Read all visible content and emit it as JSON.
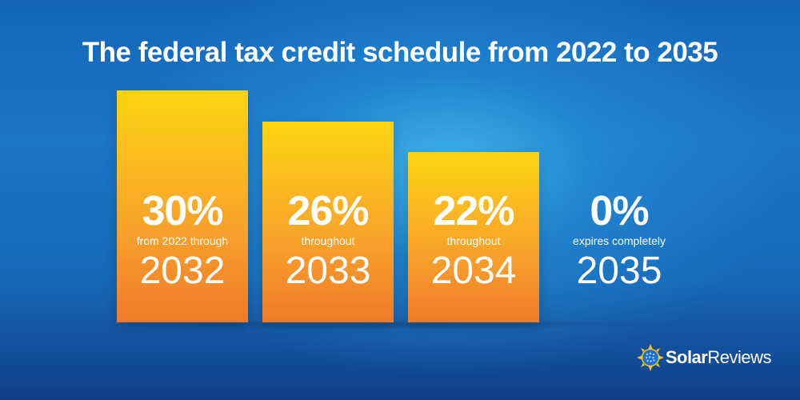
{
  "header": {
    "title": "The federal tax credit schedule from 2022 to 2035"
  },
  "chart_data": {
    "type": "bar",
    "title": "The federal tax credit schedule from 2022 to 2035",
    "categories": [
      "2032",
      "2033",
      "2034",
      "2035"
    ],
    "values": [
      30,
      26,
      22,
      0
    ],
    "value_labels": [
      "30%",
      "26%",
      "22%",
      "0%"
    ],
    "sublabels": [
      "from 2022 through",
      "throughout",
      "throughout",
      "expires completely"
    ],
    "unit": "%",
    "ylim": [
      0,
      30
    ],
    "grid": false,
    "bar_color": "#f9a825"
  },
  "brand": {
    "logo_text_bold": "Solar",
    "logo_text_light": "Reviews",
    "logo_icon": "sun-globe-icon",
    "colors": {
      "sun": "#f7c21d",
      "globe": "#1c6fd1"
    }
  }
}
